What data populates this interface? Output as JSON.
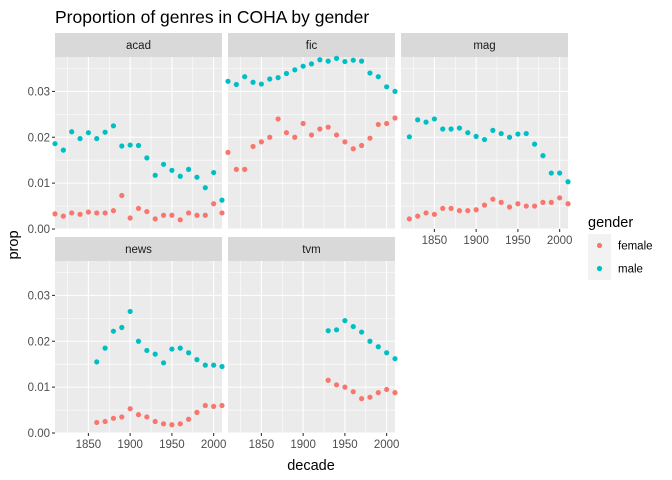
{
  "chart_data": {
    "type": "scatter",
    "title": "Proportion of genres in COHA by gender",
    "xlabel": "decade",
    "ylabel": "prop",
    "facet_layout": "3 columns x 2 rows, shared axes",
    "xlim": [
      1810,
      2010
    ],
    "ylim": [
      0,
      0.0375
    ],
    "x_ticks": [
      1850,
      1900,
      1950,
      2000
    ],
    "y_ticks": [
      0.0,
      0.01,
      0.02,
      0.03
    ],
    "y_tick_labels": [
      "0.00",
      "0.01",
      "0.02",
      "0.03"
    ],
    "legend": {
      "title": "gender",
      "placement": "right",
      "entries": [
        {
          "label": "female",
          "color": "#F8766D"
        },
        {
          "label": "male",
          "color": "#00BFC4"
        }
      ]
    },
    "panels": [
      {
        "name": "acad",
        "series": [
          {
            "name": "female",
            "x": [
              1810,
              1820,
              1830,
              1840,
              1850,
              1860,
              1870,
              1880,
              1890,
              1900,
              1910,
              1920,
              1930,
              1940,
              1950,
              1960,
              1970,
              1980,
              1990,
              2000,
              2010
            ],
            "y": [
              0.0033,
              0.0028,
              0.0035,
              0.0032,
              0.0037,
              0.0035,
              0.0035,
              0.004,
              0.0073,
              0.0024,
              0.0045,
              0.0038,
              0.0022,
              0.003,
              0.003,
              0.002,
              0.0035,
              0.003,
              0.003,
              0.0055,
              0.0035
            ]
          },
          {
            "name": "male",
            "x": [
              1810,
              1820,
              1830,
              1840,
              1850,
              1860,
              1870,
              1880,
              1890,
              1900,
              1910,
              1920,
              1930,
              1940,
              1950,
              1960,
              1970,
              1980,
              1990,
              2000,
              2010
            ],
            "y": [
              0.0186,
              0.0172,
              0.0212,
              0.0197,
              0.021,
              0.0197,
              0.0211,
              0.0225,
              0.0181,
              0.0183,
              0.0182,
              0.0155,
              0.0117,
              0.0141,
              0.0128,
              0.0115,
              0.013,
              0.0113,
              0.009,
              0.0123,
              0.0063
            ]
          }
        ]
      },
      {
        "name": "fic",
        "series": [
          {
            "name": "female",
            "x": [
              1810,
              1820,
              1830,
              1840,
              1850,
              1860,
              1870,
              1880,
              1890,
              1900,
              1910,
              1920,
              1930,
              1940,
              1950,
              1960,
              1970,
              1980,
              1990,
              2000,
              2010
            ],
            "y": [
              0.0167,
              0.013,
              0.013,
              0.018,
              0.019,
              0.02,
              0.024,
              0.021,
              0.02,
              0.023,
              0.0205,
              0.0218,
              0.0222,
              0.0205,
              0.019,
              0.0175,
              0.0182,
              0.0198,
              0.0228,
              0.023,
              0.0242
            ]
          },
          {
            "name": "male",
            "x": [
              1810,
              1820,
              1830,
              1840,
              1850,
              1860,
              1870,
              1880,
              1890,
              1900,
              1910,
              1920,
              1930,
              1940,
              1950,
              1960,
              1970,
              1980,
              1990,
              2000,
              2010
            ],
            "y": [
              0.0322,
              0.0315,
              0.0332,
              0.032,
              0.0316,
              0.0327,
              0.033,
              0.0339,
              0.0347,
              0.0355,
              0.036,
              0.0369,
              0.0366,
              0.0372,
              0.0365,
              0.0368,
              0.0366,
              0.034,
              0.0332,
              0.031,
              0.03
            ]
          }
        ]
      },
      {
        "name": "mag",
        "series": [
          {
            "name": "female",
            "x": [
              1820,
              1830,
              1840,
              1850,
              1860,
              1870,
              1880,
              1890,
              1900,
              1910,
              1920,
              1930,
              1940,
              1950,
              1960,
              1970,
              1980,
              1990,
              2000,
              2010
            ],
            "y": [
              0.0022,
              0.0028,
              0.0035,
              0.0032,
              0.0045,
              0.0045,
              0.004,
              0.004,
              0.0042,
              0.0052,
              0.0065,
              0.0058,
              0.0048,
              0.0055,
              0.005,
              0.005,
              0.0058,
              0.0058,
              0.0068,
              0.0055
            ]
          },
          {
            "name": "male",
            "x": [
              1820,
              1830,
              1840,
              1850,
              1860,
              1870,
              1880,
              1890,
              1900,
              1910,
              1920,
              1930,
              1940,
              1950,
              1960,
              1970,
              1980,
              1990,
              2000,
              2010
            ],
            "y": [
              0.0201,
              0.0238,
              0.0233,
              0.024,
              0.0218,
              0.0218,
              0.022,
              0.021,
              0.0202,
              0.0195,
              0.0215,
              0.0208,
              0.02,
              0.0207,
              0.0208,
              0.0185,
              0.016,
              0.0122,
              0.0122,
              0.0103
            ]
          }
        ]
      },
      {
        "name": "news",
        "series": [
          {
            "name": "female",
            "x": [
              1860,
              1870,
              1880,
              1890,
              1900,
              1910,
              1920,
              1930,
              1940,
              1950,
              1960,
              1970,
              1980,
              1990,
              2000,
              2010
            ],
            "y": [
              0.0023,
              0.0025,
              0.0032,
              0.0035,
              0.0053,
              0.004,
              0.0035,
              0.0025,
              0.002,
              0.0018,
              0.002,
              0.003,
              0.0045,
              0.006,
              0.0058,
              0.006
            ]
          },
          {
            "name": "male",
            "x": [
              1860,
              1870,
              1880,
              1890,
              1900,
              1910,
              1920,
              1930,
              1940,
              1950,
              1960,
              1970,
              1980,
              1990,
              2000,
              2010
            ],
            "y": [
              0.0155,
              0.0185,
              0.0222,
              0.023,
              0.0265,
              0.02,
              0.018,
              0.0172,
              0.0153,
              0.0183,
              0.0185,
              0.0175,
              0.016,
              0.0148,
              0.0148,
              0.0145
            ]
          }
        ]
      },
      {
        "name": "tvm",
        "series": [
          {
            "name": "female",
            "x": [
              1930,
              1940,
              1950,
              1960,
              1970,
              1980,
              1990,
              2000,
              2010
            ],
            "y": [
              0.0115,
              0.0105,
              0.01,
              0.009,
              0.0075,
              0.0078,
              0.0088,
              0.0095,
              0.0088
            ]
          },
          {
            "name": "male",
            "x": [
              1930,
              1940,
              1950,
              1960,
              1970,
              1980,
              1990,
              2000,
              2010
            ],
            "y": [
              0.0223,
              0.0225,
              0.0245,
              0.0232,
              0.022,
              0.02,
              0.0188,
              0.0175,
              0.0162
            ]
          }
        ]
      }
    ]
  }
}
